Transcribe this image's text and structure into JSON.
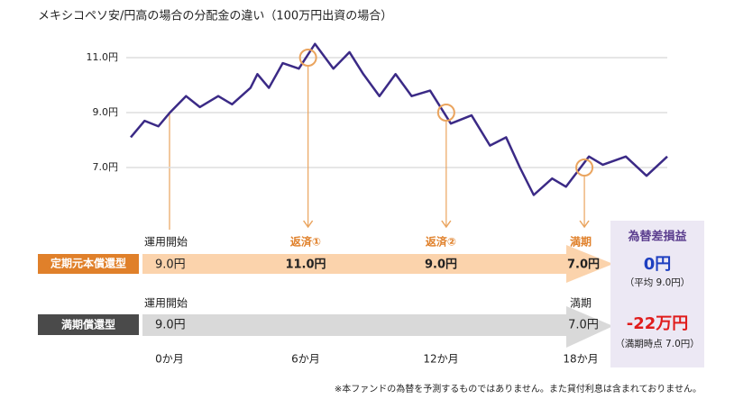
{
  "chart_data": {
    "type": "line",
    "title": "メキシコペソ安/円高の場合の分配金の違い（100万円出資の場合）",
    "x": [
      -1.7,
      -1.1,
      -0.5,
      0,
      0.7,
      1.3,
      2.1,
      2.7,
      3.5,
      3.8,
      4.3,
      4.9,
      5.6,
      6.3,
      7.1,
      7.8,
      8.4,
      9.1,
      9.8,
      10.5,
      11.3,
      12.2,
      13.1,
      13.9,
      14.6,
      15.2,
      15.8,
      16.6,
      17.2,
      18.2,
      18.8,
      19.8,
      20.7,
      21.6
    ],
    "series": [
      {
        "color": "#3b2a86",
        "values": [
          8.1,
          8.7,
          8.5,
          9.0,
          9.6,
          9.2,
          9.6,
          9.3,
          9.9,
          10.4,
          9.9,
          10.8,
          10.6,
          11.5,
          10.6,
          11.2,
          10.4,
          9.6,
          10.4,
          9.6,
          9.8,
          8.6,
          8.9,
          7.8,
          8.1,
          7.0,
          6.0,
          6.6,
          6.3,
          7.4,
          7.1,
          7.4,
          6.7,
          7.4
        ]
      }
    ],
    "xlim": [
      -1.7,
      21.6
    ],
    "ylim": [
      5.5,
      11.8
    ],
    "yticks": [
      {
        "value": 7,
        "label": "7.0円"
      },
      {
        "value": 9,
        "label": "9.0円"
      },
      {
        "value": 11,
        "label": "11.0円"
      }
    ],
    "grid": true,
    "highlights": [
      {
        "x": 6,
        "y": 11
      },
      {
        "x": 12,
        "y": 9
      },
      {
        "x": 18,
        "y": 7
      }
    ],
    "highlight_color": "#eaa45e"
  },
  "rows": [
    {
      "name": "定期元本償還型",
      "stages": [
        "運用開始",
        "返済①",
        "返済②",
        "満期"
      ],
      "prices": [
        "9.0円",
        "11.0円",
        "9.0円",
        "7.0円"
      ]
    },
    {
      "name": "満期償還型",
      "stages": [
        "運用開始",
        "満期"
      ],
      "prices": [
        "9.0円",
        "7.0円"
      ]
    }
  ],
  "months": [
    "0か月",
    "6か月",
    "12か月",
    "18か月"
  ],
  "result": {
    "title": "為替差損益",
    "rows": [
      {
        "value": "0円",
        "note": "（平均 9.0円）"
      },
      {
        "value": "-22万円",
        "note": "（満期時点 7.0円）"
      }
    ]
  },
  "footnote": "※本ファンドの為替を予測するものではありません。また貸付利息は含まれておりません。"
}
